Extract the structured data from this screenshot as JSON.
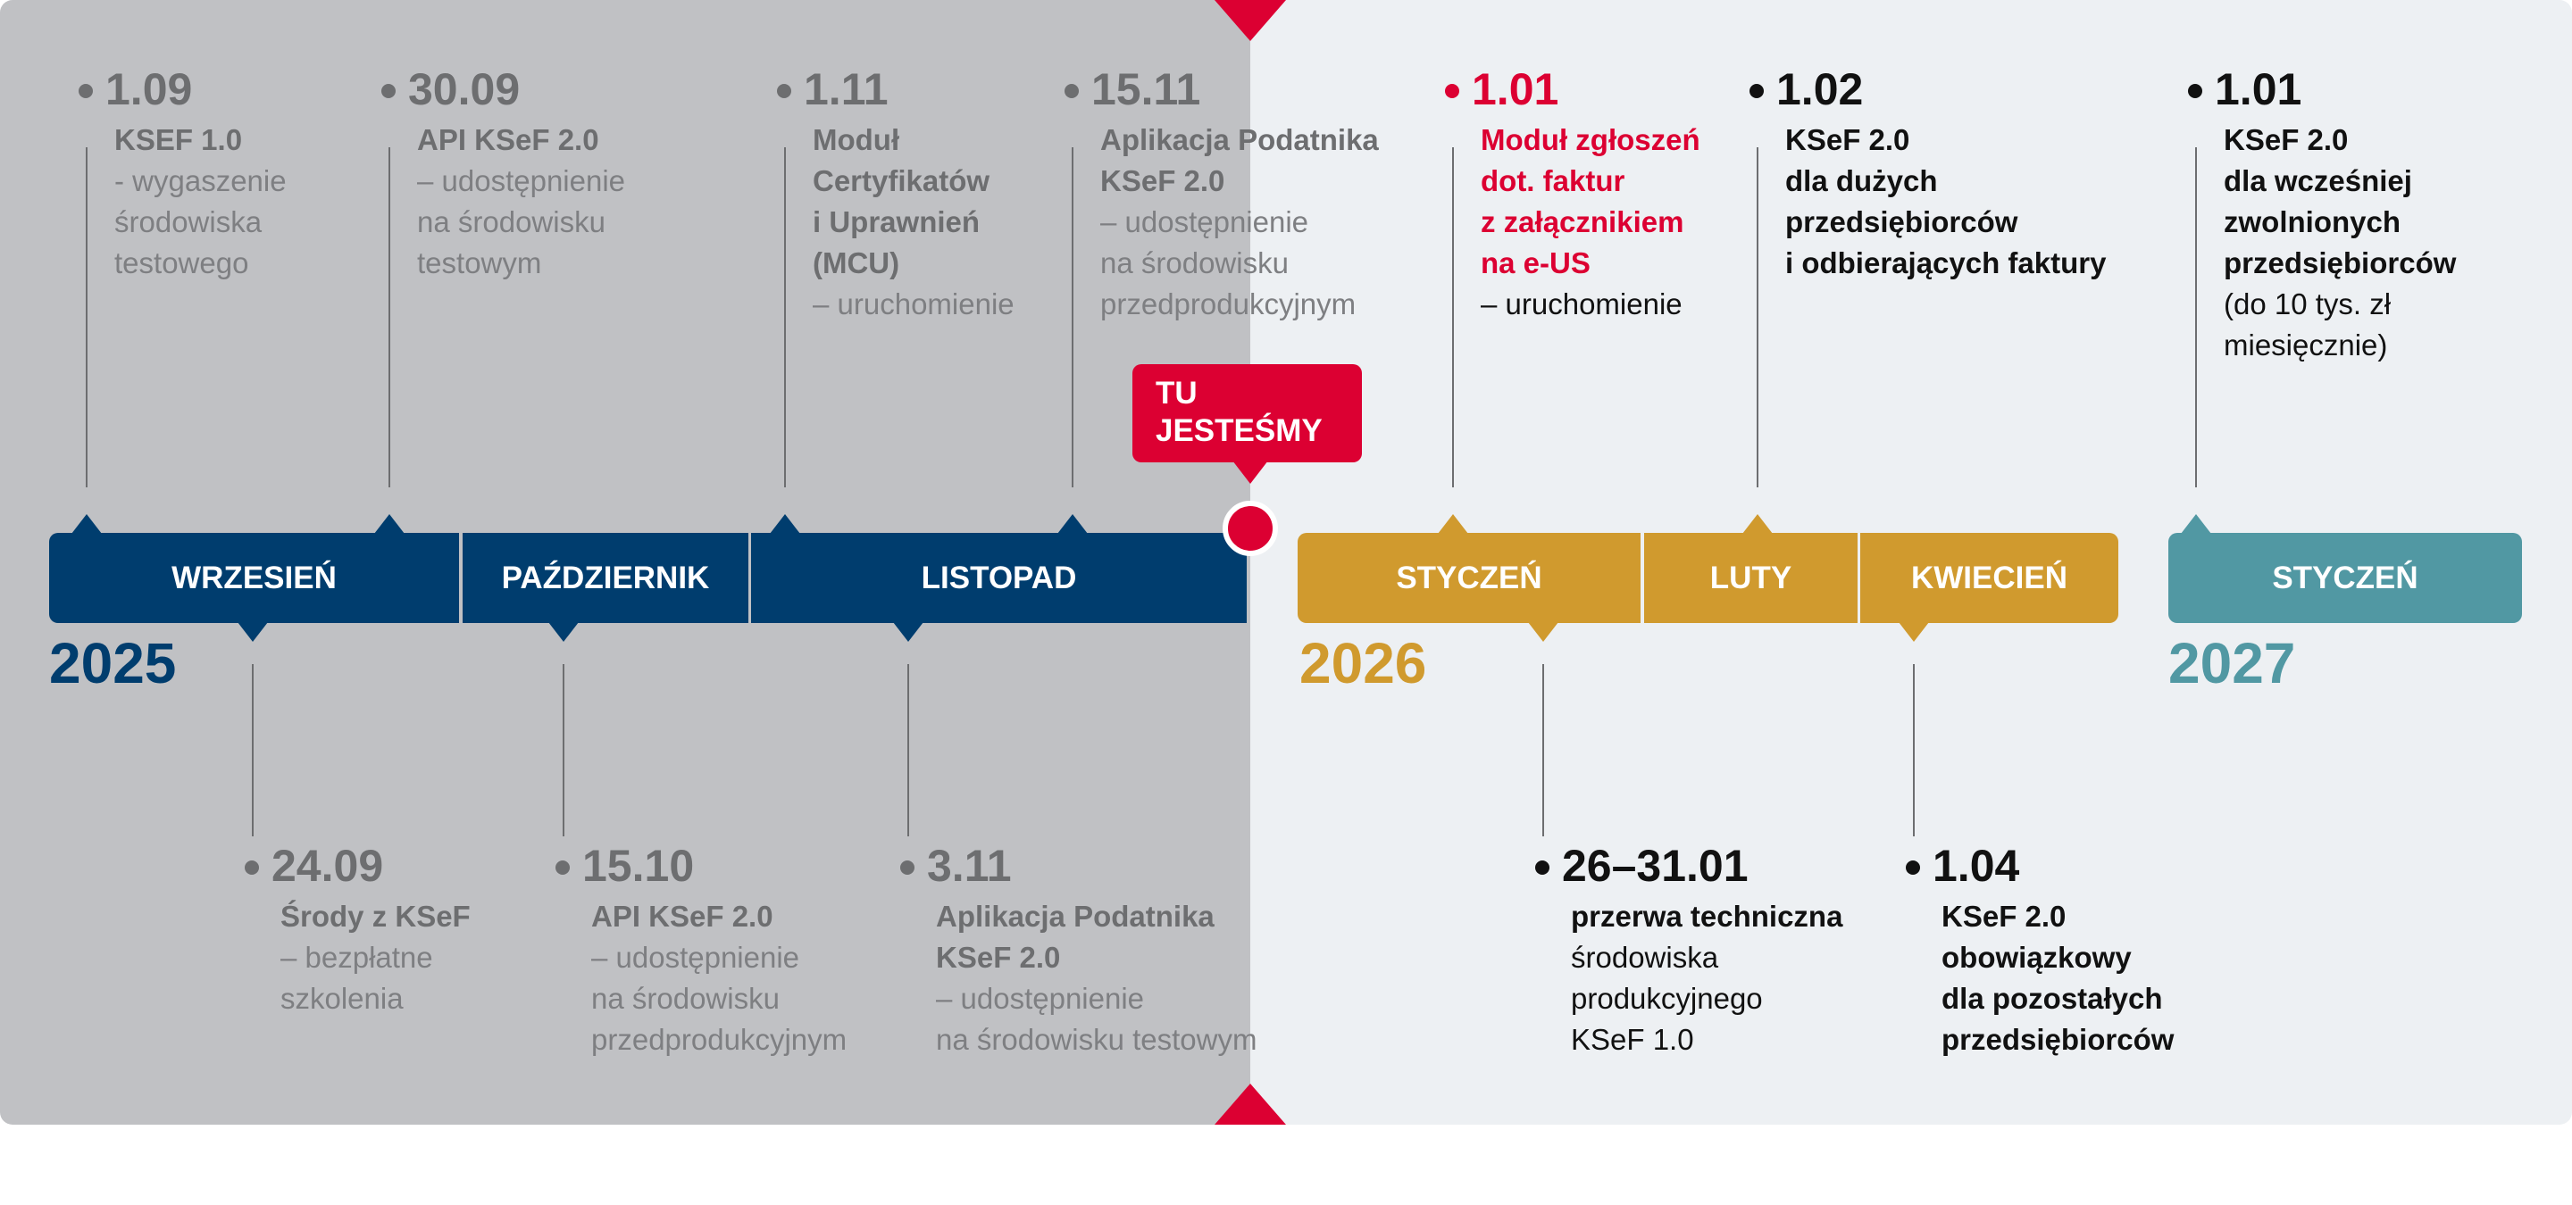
{
  "colors": {
    "past_bg": "#c0c1c4",
    "future_bg": "#edf0f3",
    "navy": "#003d6e",
    "gold": "#d09a2e",
    "teal": "#5198a3",
    "red": "#dc0032",
    "gray_text": "#6d6e70",
    "black_text": "#111111"
  },
  "here_label": [
    "TU",
    "JESTEŚMY"
  ],
  "months": [
    {
      "label": "WRZESIEŃ",
      "color": "#003d6e"
    },
    {
      "label": "PAŹDZIERNIK",
      "color": "#003d6e"
    },
    {
      "label": "LISTOPAD",
      "color": "#003d6e"
    },
    {
      "label": "STYCZEŃ",
      "color": "#d09a2e"
    },
    {
      "label": "LUTY",
      "color": "#d09a2e"
    },
    {
      "label": "KWIECIEŃ",
      "color": "#d09a2e"
    },
    {
      "label": "STYCZEŃ",
      "color": "#5198a3"
    }
  ],
  "years": [
    {
      "label": "2025",
      "color": "#003d6e"
    },
    {
      "label": "2026",
      "color": "#d09a2e"
    },
    {
      "label": "2027",
      "color": "#5198a3"
    }
  ],
  "top_events": [
    {
      "date": "1.09",
      "tone": "past",
      "lines": [
        {
          "t": "KSEF 1.0",
          "b": true
        },
        {
          "t": "- wygaszenie"
        },
        {
          "t": "środowiska"
        },
        {
          "t": "testowego"
        }
      ]
    },
    {
      "date": "30.09",
      "tone": "past",
      "lines": [
        {
          "t": "API KSeF 2.0",
          "b": true
        },
        {
          "t": "– udostępnienie"
        },
        {
          "t": "na środowisku"
        },
        {
          "t": "testowym"
        }
      ]
    },
    {
      "date": "1.11",
      "tone": "past",
      "lines": [
        {
          "t": "Moduł",
          "b": true
        },
        {
          "t": "Certyfikatów",
          "b": true
        },
        {
          "t": "i Uprawnień",
          "b": true
        },
        {
          "t": "(MCU)",
          "b": true
        },
        {
          "t": "– uruchomienie"
        }
      ]
    },
    {
      "date": "15.11",
      "tone": "past",
      "lines": [
        {
          "t": "Aplikacja Podatnika",
          "b": true
        },
        {
          "t": "KSeF 2.0",
          "b": true
        },
        {
          "t": "– udostępnienie"
        },
        {
          "t": "na środowisku"
        },
        {
          "t": "przedprodukcyjnym"
        }
      ]
    },
    {
      "date": "1.01",
      "tone": "red",
      "lines": [
        {
          "t": "Moduł zgłoszeń",
          "b": true
        },
        {
          "t": "dot. faktur",
          "b": true
        },
        {
          "t": "z załącznikiem",
          "b": true
        },
        {
          "t": "na e-US",
          "b": true
        },
        {
          "t": "– uruchomienie",
          "plain": true
        }
      ]
    },
    {
      "date": "1.02",
      "tone": "dark",
      "lines": [
        {
          "t": "KSeF 2.0",
          "b": true
        },
        {
          "t": "dla dużych",
          "b": true
        },
        {
          "t": "przedsiębiorców",
          "b": true
        },
        {
          "t": "i odbierających faktury",
          "b": true
        }
      ]
    },
    {
      "date": "1.01",
      "tone": "dark",
      "lines": [
        {
          "t": "KSeF 2.0",
          "b": true
        },
        {
          "t": "dla wcześniej",
          "b": true
        },
        {
          "t": "zwolnionych",
          "b": true
        },
        {
          "t": "przedsiębiorców",
          "b": true
        },
        {
          "t": "(do 10 tys. zł"
        },
        {
          "t": "miesięcznie)"
        }
      ]
    }
  ],
  "bottom_events": [
    {
      "date": "24.09",
      "tone": "past",
      "lines": [
        {
          "t": "Środy z KSeF",
          "b": true
        },
        {
          "t": "– bezpłatne"
        },
        {
          "t": "szkolenia"
        }
      ]
    },
    {
      "date": "15.10",
      "tone": "past",
      "lines": [
        {
          "t": "API KSeF 2.0",
          "b": true
        },
        {
          "t": "– udostępnienie"
        },
        {
          "t": "na środowisku"
        },
        {
          "t": "przedprodukcyjnym"
        }
      ]
    },
    {
      "date": "3.11",
      "tone": "past",
      "lines": [
        {
          "t": "Aplikacja Podatnika",
          "b": true
        },
        {
          "t": "KSeF 2.0",
          "b": true
        },
        {
          "t": "– udostępnienie"
        },
        {
          "t": "na środowisku testowym"
        }
      ]
    },
    {
      "date": "26–31.01",
      "tone": "dark",
      "lines": [
        {
          "t": "przerwa techniczna",
          "b": true
        },
        {
          "t": "środowiska"
        },
        {
          "t": "produkcyjnego"
        },
        {
          "t": "KSeF 1.0"
        }
      ]
    },
    {
      "date": "1.04",
      "tone": "dark",
      "lines": [
        {
          "t": "KSeF 2.0",
          "b": true
        },
        {
          "t": "obowiązkowy",
          "b": true
        },
        {
          "t": "dla pozostałych",
          "b": true
        },
        {
          "t": "przedsiębiorców",
          "b": true
        }
      ]
    }
  ]
}
